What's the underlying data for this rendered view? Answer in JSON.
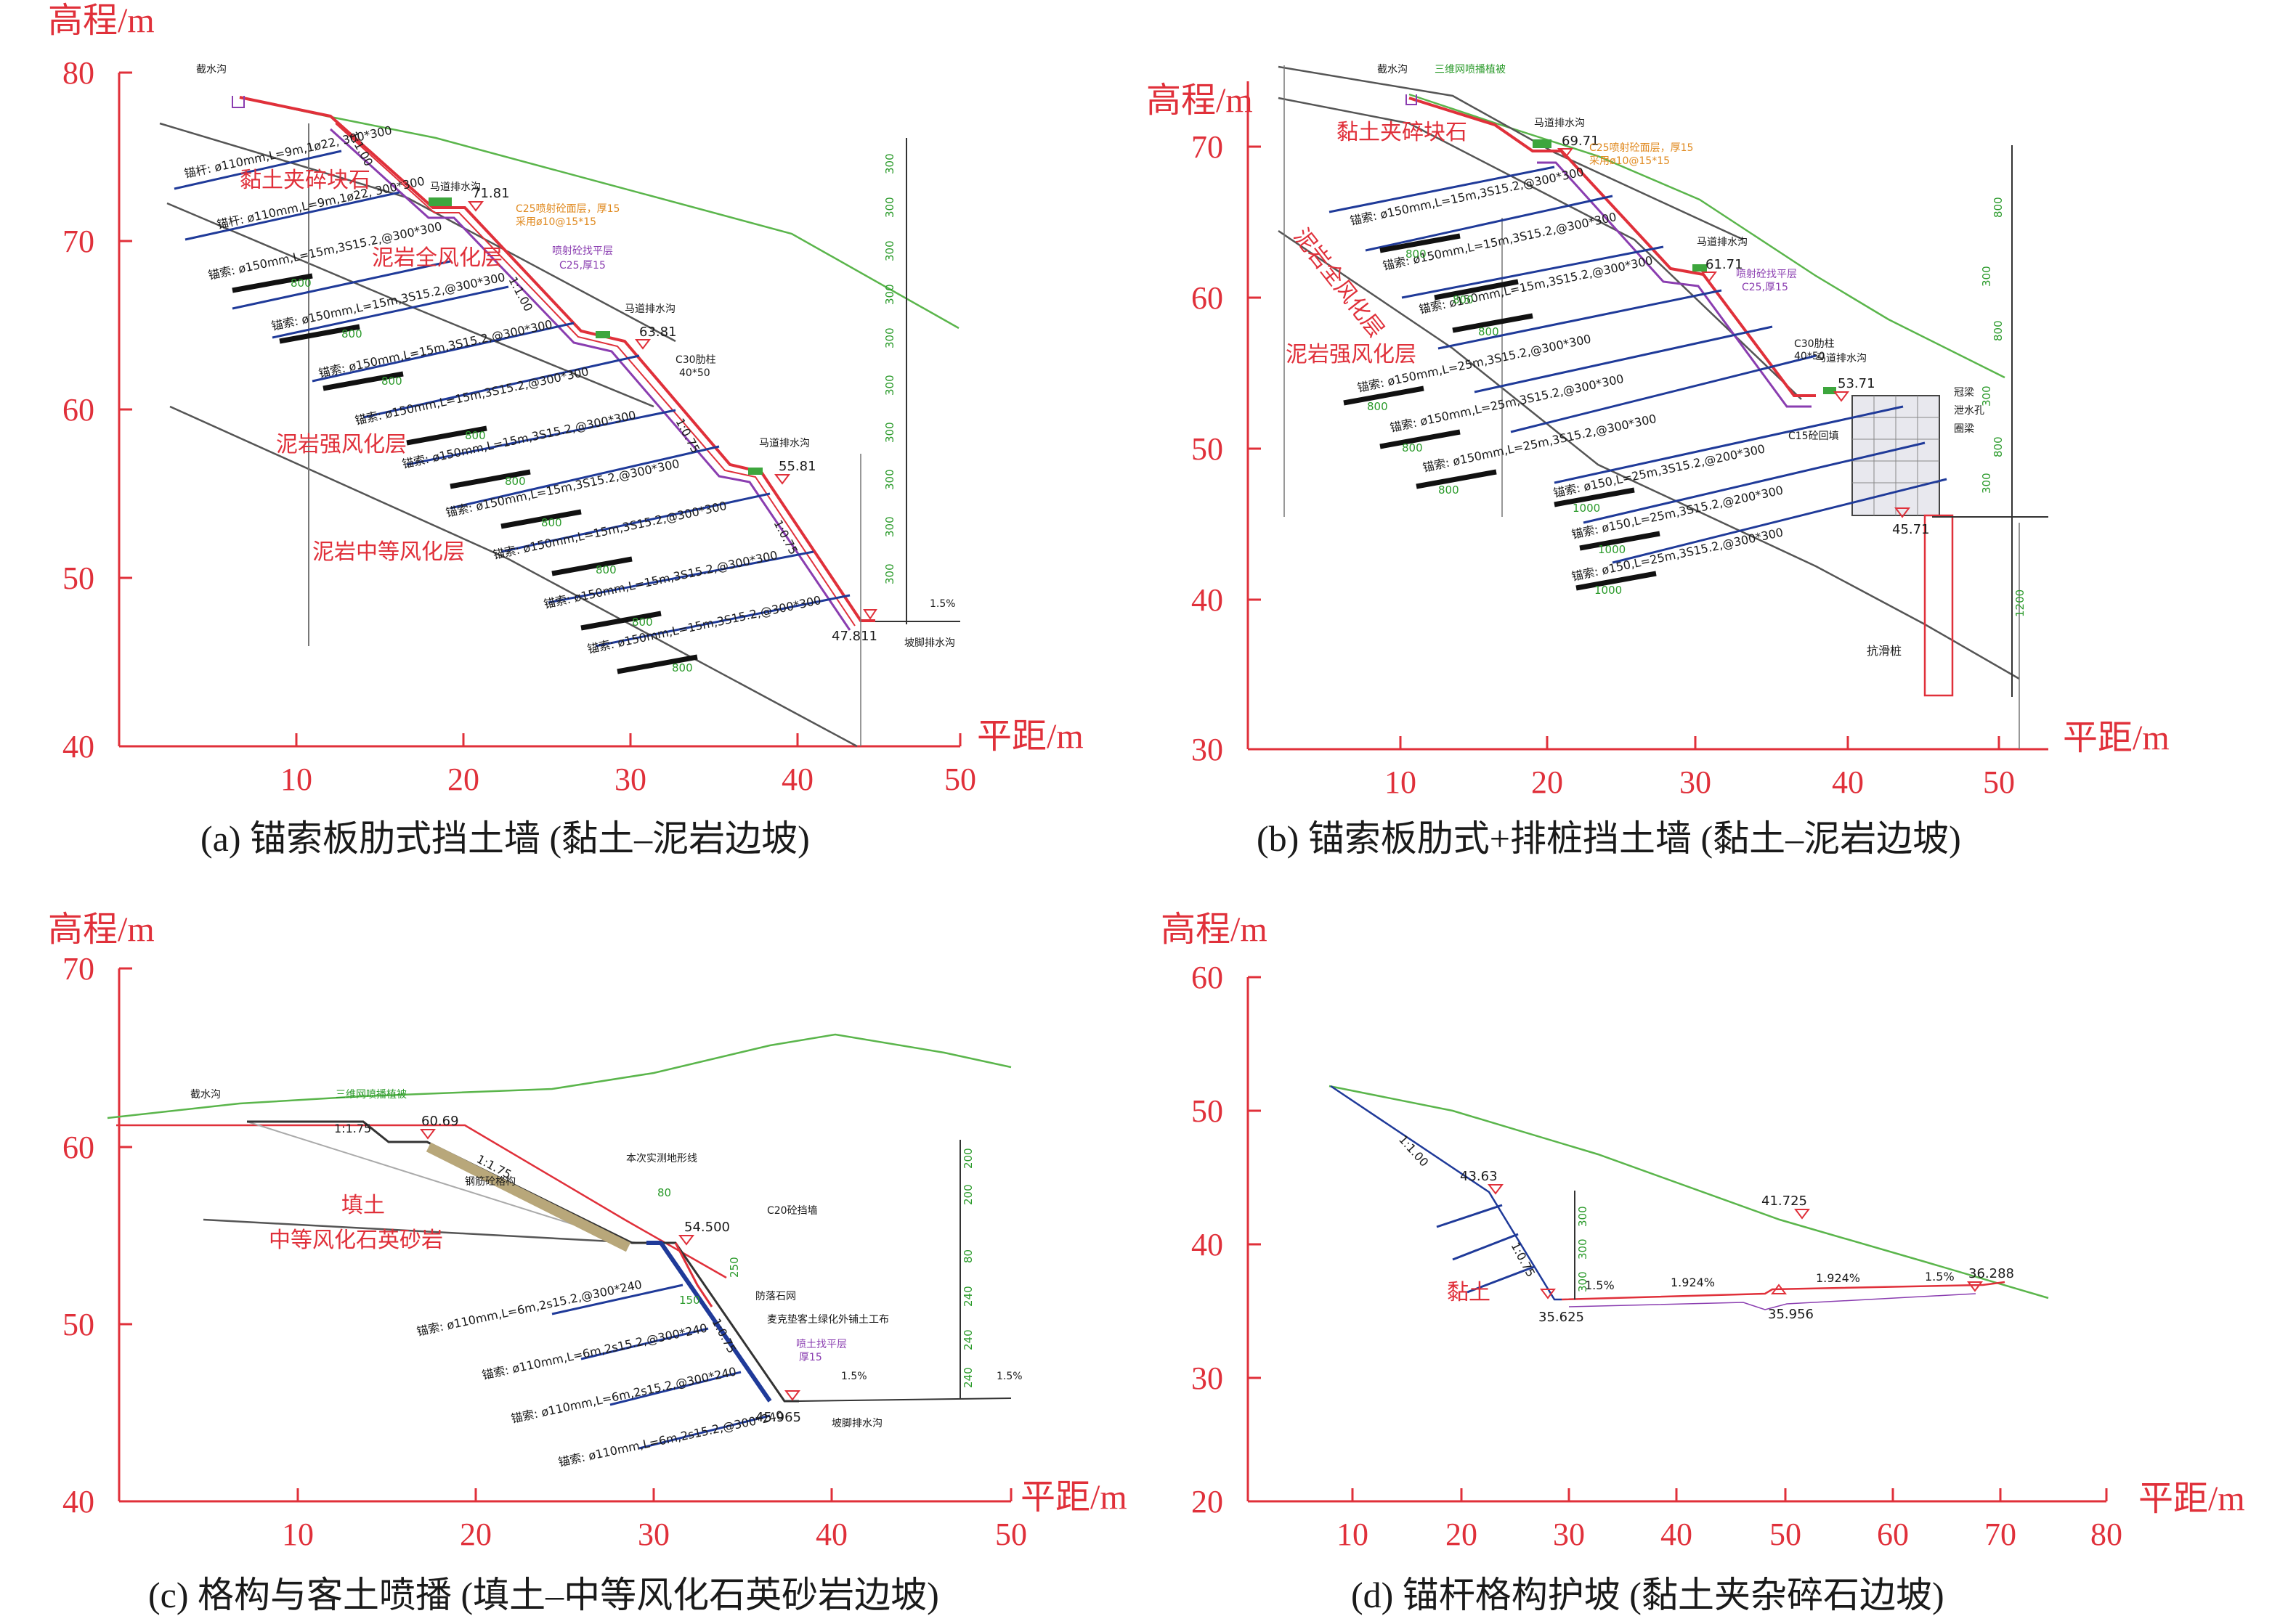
{
  "panels": [
    {
      "id": "a",
      "caption": "(a) 锚索板肋式挡土墙 (黏土–泥岩边坡)",
      "y_axis_title": "高程/m",
      "x_axis_title": "平距/m",
      "y_ticks": [
        "80",
        "70",
        "60",
        "50",
        "40"
      ],
      "x_ticks": [
        "10",
        "20",
        "30",
        "40",
        "50"
      ],
      "layers": [
        "黏土夹碎块石",
        "泥岩全风化层",
        "泥岩强风化层",
        "泥岩中等风化层"
      ],
      "elevations": [
        "71.81",
        "63.81",
        "55.81",
        "47.811"
      ],
      "slopes": [
        "1:1.00",
        "1:1.00",
        "1:0.75",
        "1:0.75"
      ],
      "anchors": [
        "锚杆: ø110mm,L=9m,1ø22, 300*300",
        "锚杆: ø110mm,L=9m,1ø22, 300*300",
        "锚索: ø150mm,L=15m,3S15.2,@300*300",
        "锚索: ø150mm,L=15m,3S15.2,@300*300",
        "锚索: ø150mm,L=15m,3S15.2,@300*300",
        "锚索: ø150mm,L=15m,3S15.2,@300*300",
        "锚索: ø150mm,L=15m,3S15.2,@300*300",
        "锚索: ø150mm,L=15m,3S15.2,@300*300",
        "锚索: ø150mm,L=15m,3S15.2,@300*300",
        "锚索: ø150mm,L=15m,3S15.2,@300*300",
        "锚索: ø150mm,L=15m,3S15.2,@300*300"
      ],
      "bar_label": "800",
      "notes": [
        "截水沟",
        "马道排水沟",
        "马道排水沟",
        "马道排水沟",
        "C25喷射砼面层，厚15",
        "采用ø10@15*15",
        "喷射砼找平层",
        "C25,厚15",
        "C30肋柱",
        "40*50",
        "坡脚排水沟",
        "1.5%"
      ],
      "dim_labels": [
        "300",
        "300",
        "300",
        "300",
        "300",
        "300",
        "300",
        "300",
        "300",
        "300"
      ]
    },
    {
      "id": "b",
      "caption": "(b) 锚索板肋式+排桩挡土墙 (黏土–泥岩边坡)",
      "y_axis_title": "高程/m",
      "x_axis_title": "平距/m",
      "y_ticks": [
        "70",
        "60",
        "50",
        "40",
        "30"
      ],
      "x_ticks": [
        "10",
        "20",
        "30",
        "40",
        "50"
      ],
      "layers": [
        "黏土夹碎块石",
        "泥岩全风化层",
        "泥岩强风化层"
      ],
      "elevations": [
        "69.71",
        "61.71",
        "53.71",
        "45.71"
      ],
      "anchors": [
        "锚索: ø150mm,L=15m,3S15.2,@300*300",
        "锚索: ø150mm,L=15m,3S15.2,@300*300",
        "锚索: ø150mm,L=15m,3S15.2,@300*300",
        "锚索: ø150mm,L=25m,3S15.2,@300*300",
        "锚索: ø150mm,L=25m,3S15.2,@300*300",
        "锚索: ø150mm,L=25m,3S15.2,@300*300",
        "锚索: ø150,L=25m,3S15.2,@200*300",
        "锚索: ø150,L=25m,3S15.2,@200*300",
        "锚索: ø150,L=25m,3S15.2,@300*300"
      ],
      "bar_labels": [
        "800",
        "800",
        "800",
        "800",
        "800",
        "800",
        "1000",
        "1000",
        "1000"
      ],
      "notes": [
        "截水沟",
        "三维网喷播植被",
        "马道排水沟",
        "马道排水沟",
        "马道排水沟",
        "C25喷射砼面层，厚15",
        "采用ø10@15*15",
        "喷射砼找平层",
        "C25,厚15",
        "C30肋柱",
        "40*50",
        "C15砼回填",
        "冠梁",
        "泄水孔",
        "圈梁",
        "抗滑桩"
      ],
      "dim_labels": [
        "800",
        "800",
        "800",
        "300",
        "300",
        "300",
        "1200"
      ]
    },
    {
      "id": "c",
      "caption": "(c) 格构与客土喷播 (填土–中等风化石英砂岩边坡)",
      "y_axis_title": "高程/m",
      "x_axis_title": "平距/m",
      "y_ticks": [
        "70",
        "60",
        "50",
        "40"
      ],
      "x_ticks": [
        "10",
        "20",
        "30",
        "40",
        "50"
      ],
      "layers": [
        "填土",
        "中等风化石英砂岩"
      ],
      "elevations": [
        "60.69",
        "54.500",
        "45.965"
      ],
      "slopes": [
        "1:1.75",
        "1:1.75",
        "1:0.75"
      ],
      "anchors": [
        "锚索: ø110mm,L=6m,2s15.2,@300*240",
        "锚索: ø110mm,L=6m,2s15.2,@300*240",
        "锚索: ø110mm,L=6m,2s15.2,@300*240",
        "锚索: ø110mm,L=6m,2s15.2,@300*240"
      ],
      "notes": [
        "截水沟",
        "三维网喷播植被",
        "本次实测地形线",
        "C20砼挡墙",
        "钢筋砼格构",
        "防落石网",
        "麦克垫客土绿化外铺土工布",
        "喷土找平层",
        "厚15",
        "坡脚排水沟",
        "1.5%",
        "1.5%"
      ],
      "dim_labels": [
        "80",
        "150",
        "250",
        "200",
        "200",
        "80",
        "240",
        "240",
        "240"
      ]
    },
    {
      "id": "d",
      "caption": "(d) 锚杆格构护坡 (黏土夹杂碎石边坡)",
      "y_axis_title": "高程/m",
      "x_axis_title": "平距/m",
      "y_ticks": [
        "60",
        "50",
        "40",
        "30",
        "20"
      ],
      "x_ticks": [
        "10",
        "20",
        "30",
        "40",
        "50",
        "60",
        "70",
        "80"
      ],
      "layers": [
        "黏土"
      ],
      "elevations": [
        "43.63",
        "35.625",
        "41.725",
        "35.956",
        "36.288"
      ],
      "slopes": [
        "1:1.00",
        "1:0.75"
      ],
      "grades": [
        "1.5%",
        "1.924%",
        "1.924%",
        "1.5%"
      ],
      "dim_labels": [
        "300",
        "300",
        "300"
      ]
    }
  ]
}
